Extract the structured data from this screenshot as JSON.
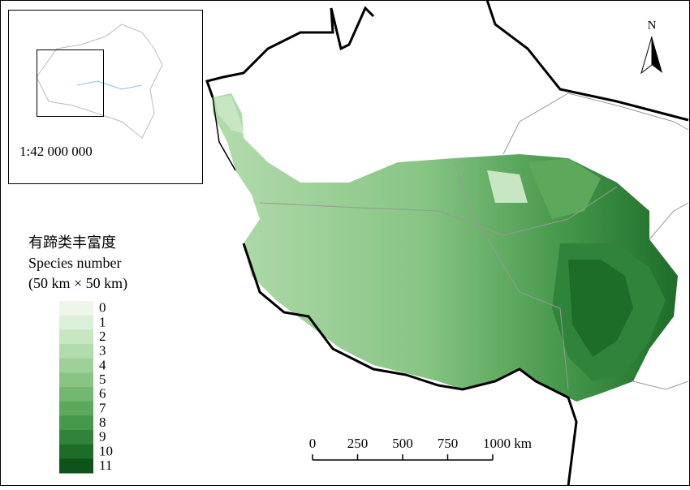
{
  "map": {
    "inset": {
      "scale": "1:42 000 000"
    },
    "north": "N",
    "legend": {
      "title": [
        "有蹄类丰富度",
        "Species number",
        "(50 km × 50 km)"
      ],
      "items": [
        {
          "label": "0",
          "color": "#eef6ec"
        },
        {
          "label": "1",
          "color": "#dcefd8"
        },
        {
          "label": "2",
          "color": "#c8e6c2"
        },
        {
          "label": "3",
          "color": "#b3dcad"
        },
        {
          "label": "4",
          "color": "#9ed199"
        },
        {
          "label": "5",
          "color": "#88c585"
        },
        {
          "label": "6",
          "color": "#72b870"
        },
        {
          "label": "7",
          "color": "#5ca95c"
        },
        {
          "label": "8",
          "color": "#46984b"
        },
        {
          "label": "9",
          "color": "#30833a"
        },
        {
          "label": "10",
          "color": "#1d6d29"
        },
        {
          "label": "11",
          "color": "#0e541a"
        }
      ]
    },
    "scale_bar": {
      "labels": [
        "0",
        "250",
        "500",
        "750",
        "1000 km"
      ]
    }
  }
}
